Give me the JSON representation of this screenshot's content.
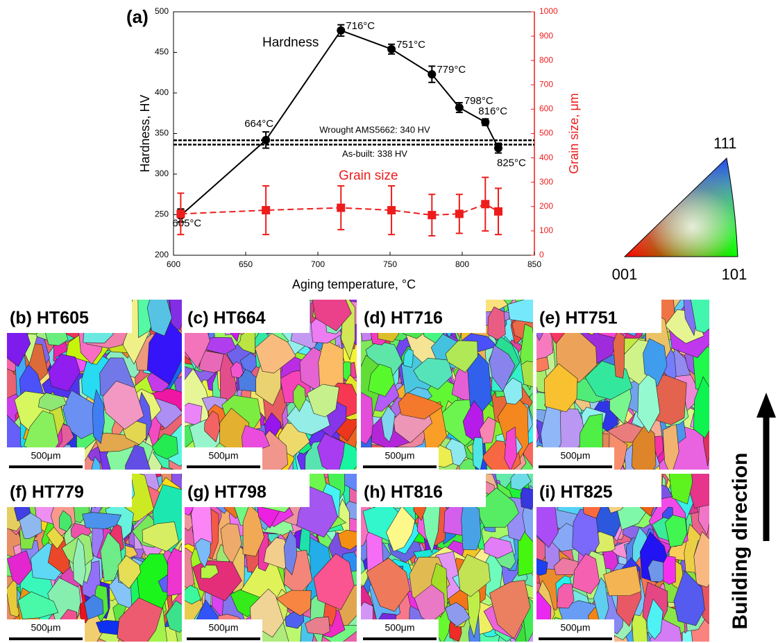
{
  "chart_data": {
    "type": "line",
    "panel_label": "(a)",
    "x": [
      605,
      664,
      716,
      751,
      779,
      798,
      816,
      825
    ],
    "xlim": [
      600,
      850
    ],
    "xticks": [
      600,
      650,
      700,
      750,
      800,
      850
    ],
    "ylim": [
      200,
      500
    ],
    "yticks": [
      200,
      250,
      300,
      350,
      400,
      450,
      500
    ],
    "y2lim": [
      0,
      1000
    ],
    "y2ticks": [
      0,
      100,
      200,
      300,
      400,
      500,
      600,
      700,
      800,
      900,
      1000
    ],
    "xlabel": "Aging temperature, °C",
    "ylabel": "Hardness, HV",
    "y2label": "Grain size, μm",
    "series": [
      {
        "name": "Hardness",
        "color": "#000000",
        "marker": "circle",
        "dashed": false,
        "values": [
          249,
          342,
          477,
          454,
          423,
          382,
          364,
          332
        ],
        "errors": [
          8,
          10,
          7,
          6,
          10,
          6,
          4,
          6
        ],
        "x_labels": [
          "605°C",
          "664°C",
          "716°C",
          "751°C",
          "779°C",
          "798°C",
          "816°C",
          "825°C"
        ]
      },
      {
        "name": "Grain size",
        "color": "#ee1c1c",
        "marker": "square",
        "dashed": true,
        "axis": "y2",
        "values": [
          170,
          185,
          195,
          185,
          165,
          170,
          210,
          180
        ],
        "errors": [
          85,
          100,
          90,
          100,
          85,
          80,
          110,
          95
        ]
      }
    ],
    "reference_lines": [
      {
        "label": "Wrought AMS5662: 340 HV",
        "value": 340
      },
      {
        "label": "As-built: 338 HV",
        "value": 338
      }
    ]
  },
  "ipf_key": {
    "labels": [
      "111",
      "001",
      "101"
    ]
  },
  "maps": [
    {
      "label": "(b) HT605",
      "scale_bar": "500μm"
    },
    {
      "label": "(c) HT664",
      "scale_bar": "500μm"
    },
    {
      "label": "(d) HT716",
      "scale_bar": "500μm"
    },
    {
      "label": "(e) HT751",
      "scale_bar": "500μm"
    },
    {
      "label": "(f) HT779",
      "scale_bar": "500μm"
    },
    {
      "label": "(g) HT798",
      "scale_bar": "500μm"
    },
    {
      "label": "(h) HT816",
      "scale_bar": "500μm"
    },
    {
      "label": "(i) HT825",
      "scale_bar": "500μm"
    }
  ],
  "building_direction": "Building direction"
}
